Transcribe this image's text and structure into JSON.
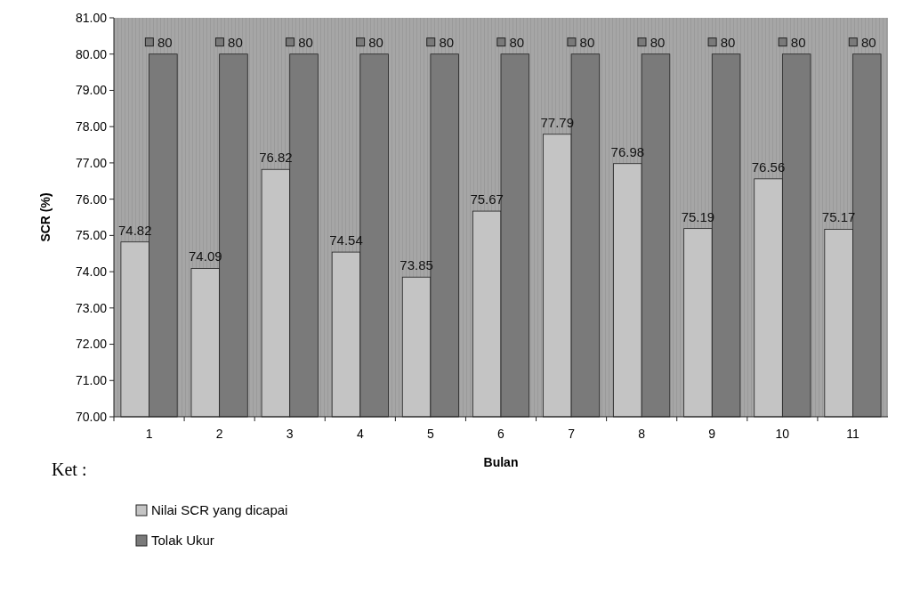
{
  "chart_data": {
    "type": "bar",
    "xlabel": "Bulan",
    "ylabel": "SCR (%)",
    "categories": [
      "1",
      "2",
      "3",
      "4",
      "5",
      "6",
      "7",
      "8",
      "9",
      "10",
      "11"
    ],
    "series": [
      {
        "name": "Nilai SCR yang dicapai",
        "color": "#c4c4c4",
        "values": [
          74.82,
          74.09,
          76.82,
          74.54,
          73.85,
          75.67,
          77.79,
          76.98,
          75.19,
          76.56,
          75.17
        ]
      },
      {
        "name": "Tolak Ukur",
        "color": "#7a7a7a",
        "values": [
          80,
          80,
          80,
          80,
          80,
          80,
          80,
          80,
          80,
          80,
          80
        ]
      }
    ],
    "ylim": [
      70,
      81
    ],
    "yticks": [
      {
        "value": 70,
        "label": "70.00"
      },
      {
        "value": 71,
        "label": "71.00"
      },
      {
        "value": 72,
        "label": "72.00"
      },
      {
        "value": 73,
        "label": "73.00"
      },
      {
        "value": 74,
        "label": "74.00"
      },
      {
        "value": 75,
        "label": "75.00"
      },
      {
        "value": 76,
        "label": "76.00"
      },
      {
        "value": 77,
        "label": "77.00"
      },
      {
        "value": 78,
        "label": "78.00"
      },
      {
        "value": 79,
        "label": "79.00"
      },
      {
        "value": 80,
        "label": "80.00"
      },
      {
        "value": 81,
        "label": "81.00"
      }
    ],
    "data_labels": true,
    "legend": "bottom",
    "grid": false,
    "annotations": [
      "Ket :"
    ]
  }
}
